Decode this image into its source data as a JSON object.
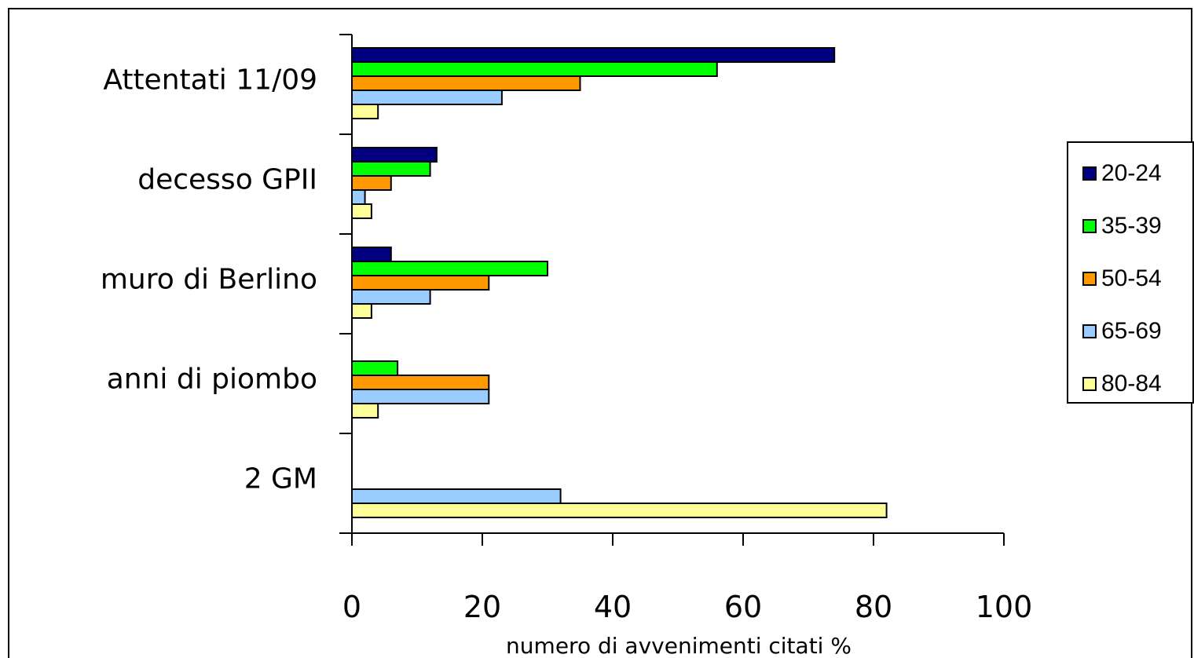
{
  "chart_data": {
    "type": "bar",
    "orientation": "horizontal",
    "categories": [
      "Attentati 11/09",
      "decesso GPII",
      "muro di Berlino",
      "anni di piombo",
      "2 GM"
    ],
    "series": [
      {
        "name": "20-24",
        "color": "#000080",
        "values": [
          74,
          13,
          6,
          0,
          0
        ]
      },
      {
        "name": "35-39",
        "color": "#00ff00",
        "values": [
          56,
          12,
          30,
          7,
          0
        ]
      },
      {
        "name": "50-54",
        "color": "#ff9900",
        "values": [
          35,
          6,
          21,
          21,
          0
        ]
      },
      {
        "name": "65-69",
        "color": "#99ccff",
        "values": [
          23,
          2,
          12,
          21,
          32
        ]
      },
      {
        "name": "80-84",
        "color": "#ffff99",
        "values": [
          4,
          3,
          3,
          4,
          82
        ]
      }
    ],
    "xlabel": "numero di avvenimenti citati %",
    "xlim": [
      0,
      100
    ],
    "xticks": [
      "0",
      "20",
      "40",
      "60",
      "80",
      "100"
    ],
    "grid": false,
    "legend_position": "right"
  }
}
